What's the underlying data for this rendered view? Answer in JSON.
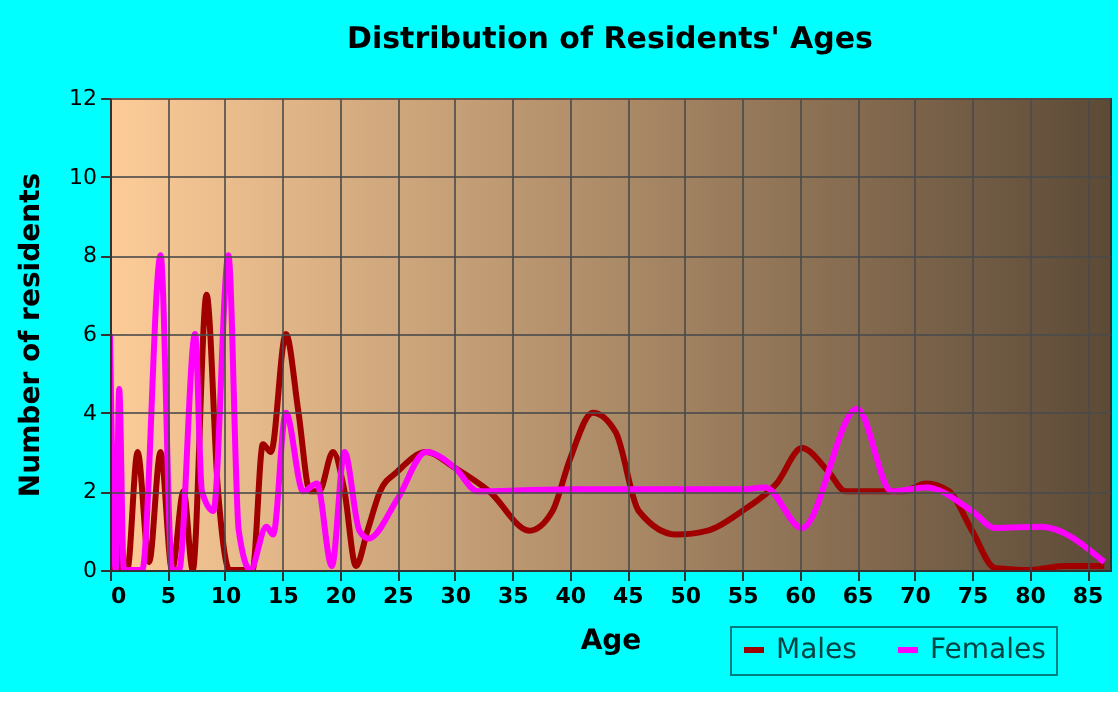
{
  "chart_data": {
    "type": "line",
    "title": "Distribution of Residents' Ages",
    "xlabel": "Age",
    "ylabel": "Number of residents",
    "xlim": [
      0,
      87
    ],
    "xticks": [
      0,
      5,
      10,
      15,
      20,
      25,
      30,
      35,
      40,
      45,
      50,
      55,
      60,
      65,
      70,
      75,
      80,
      85
    ],
    "ylim": [
      0,
      12
    ],
    "yticks": [
      0,
      2,
      4,
      6,
      8,
      10,
      12
    ],
    "grid": true,
    "legend": "bottom right",
    "marker": "none",
    "line_style": "solid",
    "series": [
      {
        "name": "Males",
        "color": "#a00000",
        "x": [
          0,
          0.5,
          1,
          1.5,
          2.4,
          3.4,
          4.4,
          5.4,
          6.4,
          7.2,
          8.4,
          9.4,
          10.4,
          11.4,
          12.4,
          13.3,
          14,
          15.3,
          16.4,
          17.4,
          18.2,
          19.4,
          20.4,
          21.4,
          22.4,
          23.5,
          25,
          27.5,
          30,
          33,
          36.5,
          38.5,
          40,
          42,
          44,
          46,
          49.3,
          52,
          55,
          58,
          60.2,
          62.5,
          64,
          67,
          69,
          71,
          73,
          75,
          77,
          80,
          83,
          86.5
        ],
        "values": [
          0,
          2.8,
          0,
          0,
          3,
          0.2,
          3,
          0,
          2,
          0,
          7,
          2,
          0,
          0,
          0,
          3.2,
          3,
          6,
          4,
          2,
          2,
          3,
          2,
          0.1,
          1,
          2,
          2.5,
          3,
          2.6,
          2,
          1,
          1.5,
          2.8,
          4,
          3.5,
          1.5,
          0.9,
          1,
          1.5,
          2.2,
          3.1,
          2.5,
          2,
          2,
          2,
          2.2,
          2,
          1,
          0.05,
          0,
          0.1,
          0.1
        ]
      },
      {
        "name": "Females",
        "color": "#ff00ff",
        "x": [
          0,
          0.5,
          0.8,
          1.2,
          2,
          2.8,
          4.4,
          5.4,
          6,
          7.4,
          8,
          9,
          10.3,
          11.2,
          12.2,
          13.6,
          14.2,
          15.3,
          16.8,
          18,
          19.3,
          20.4,
          21.7,
          22.5,
          25,
          27.5,
          30,
          32,
          40,
          50,
          55,
          57,
          60.2,
          65,
          68,
          71,
          75,
          77,
          81,
          86.5
        ],
        "values": [
          6,
          0,
          4.6,
          0,
          0,
          0,
          8,
          0,
          0,
          6,
          2,
          1.5,
          8,
          1,
          0,
          1.1,
          0.9,
          4,
          2,
          2.2,
          0.1,
          3,
          1,
          0.8,
          1.8,
          3,
          2.6,
          2,
          2.05,
          2.05,
          2.05,
          2.1,
          1.07,
          4.1,
          2,
          2.1,
          1.5,
          1.07,
          1.1,
          0.2
        ]
      }
    ]
  }
}
